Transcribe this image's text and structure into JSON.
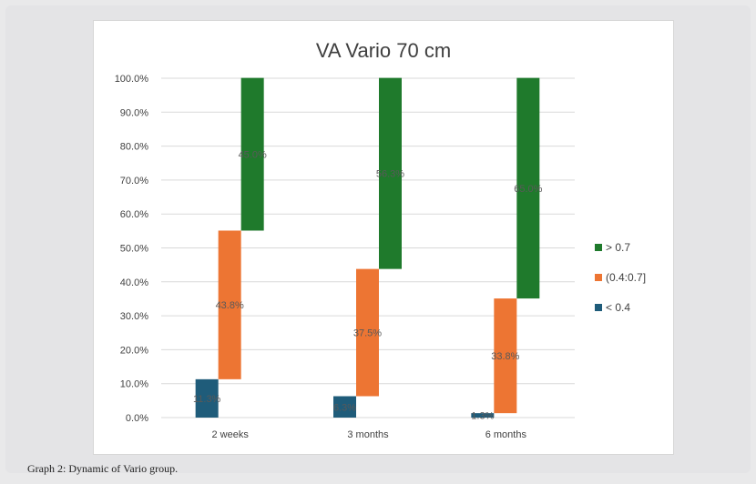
{
  "caption": "Graph 2: Dynamic of Vario group.",
  "chart_data": {
    "type": "bar",
    "title": "VA Vario 70 cm",
    "categories": [
      "2 weeks",
      "3 months",
      "6 months"
    ],
    "ylim": [
      0,
      100
    ],
    "yticks": [
      "0.0%",
      "10.0%",
      "20.0%",
      "30.0%",
      "40.0%",
      "50.0%",
      "60.0%",
      "70.0%",
      "80.0%",
      "90.0%",
      "100.0%"
    ],
    "grid": true,
    "legend_position": "right",
    "series": [
      {
        "name": "< 0.4",
        "color": "#1f5c7a",
        "values": [
          11.3,
          6.3,
          1.3
        ],
        "labels": [
          "11.3%",
          "6.3%",
          "1.3%"
        ]
      },
      {
        "name": "(0.4:0.7]",
        "color": "#ed7533",
        "values": [
          43.8,
          37.5,
          33.8
        ],
        "labels": [
          "43.8%",
          "37.5%",
          "33.8%"
        ]
      },
      {
        "name": "> 0.7",
        "color": "#1f7a2c",
        "values": [
          45.0,
          56.3,
          65.0
        ],
        "labels": [
          "45.0%",
          "56.3%",
          "65.0%"
        ]
      }
    ],
    "legend": [
      {
        "name": "> 0.7",
        "color": "#1f7a2c"
      },
      {
        "name": "(0.4:0.7]",
        "color": "#ed7533"
      },
      {
        "name": "< 0.4",
        "color": "#1f5c7a"
      }
    ]
  }
}
